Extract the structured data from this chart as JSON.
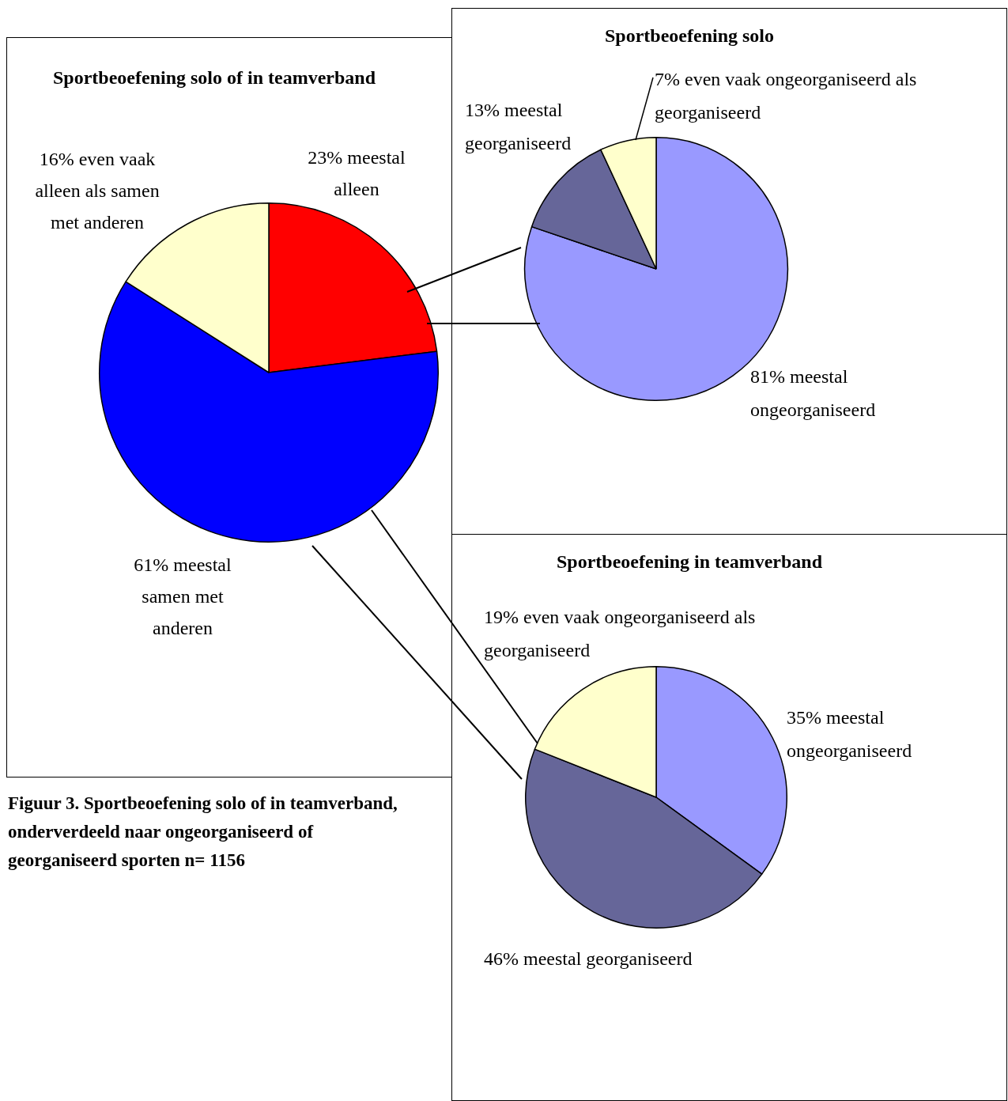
{
  "chart_data": [
    {
      "type": "pie",
      "title": "Sportbeoefening solo of in teamverband",
      "categories": [
        "23% meestal alleen",
        "61% meestal samen met anderen",
        "16% even vaak alleen als samen met anderen"
      ],
      "values": [
        23,
        61,
        16
      ],
      "colors": [
        "#ff0000",
        "#0000ff",
        "#ffffcc"
      ],
      "legend": false,
      "annotations": [
        "Figuur 3. Sportbeoefening solo of in teamverband, onderverdeeld naar ongeorganiseerd of georganiseerd sporten     n= 1156"
      ]
    },
    {
      "type": "pie",
      "title": "Sportbeoefening solo",
      "categories": [
        "81% meestal ongeorganiseerd",
        "13% meestal georganiseerd",
        "7% even vaak ongeorganiseerd als georganiseerd"
      ],
      "values": [
        81,
        13,
        7
      ],
      "colors": [
        "#9999ff",
        "#666699",
        "#ffffcc"
      ],
      "legend": false
    },
    {
      "type": "pie",
      "title": "Sportbeoefening in teamverband",
      "categories": [
        "35% meestal ongeorganiseerd",
        "46% meestal georganiseerd",
        "19% even vaak ongeorganiseerd als georganiseerd"
      ],
      "values": [
        35,
        46,
        19
      ],
      "colors": [
        "#9999ff",
        "#666699",
        "#ffffcc"
      ],
      "legend": false
    }
  ]
}
